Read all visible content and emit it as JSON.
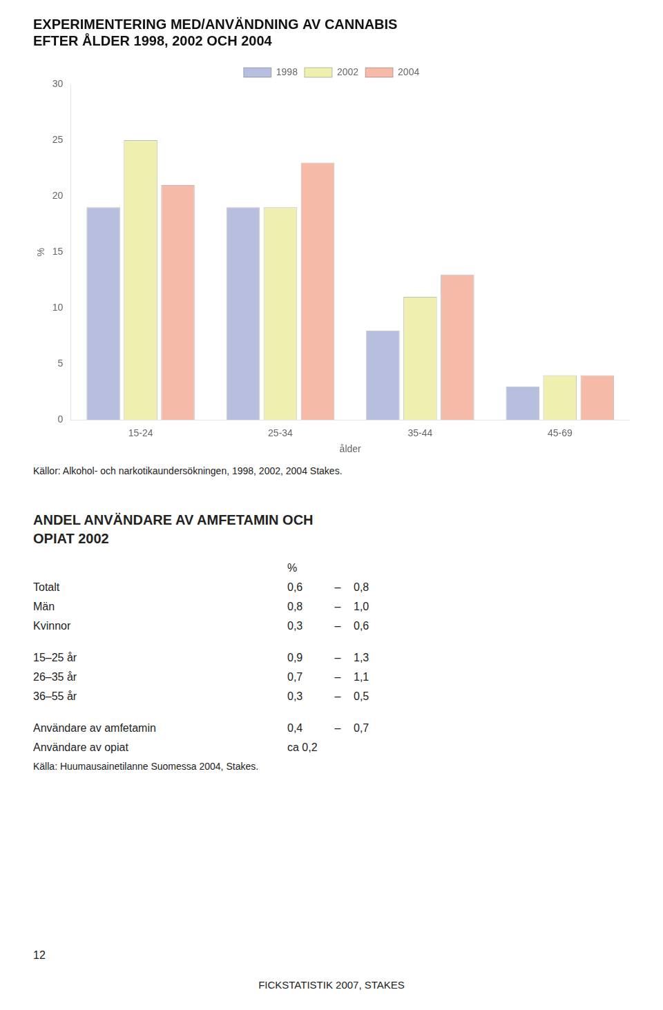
{
  "chart_data": {
    "type": "bar",
    "title": [
      "EXPERIMENTERING MED/ANVÄNDNING AV CANNABIS",
      "EFTER ÅLDER 1998, 2002 OCH 2004"
    ],
    "x_label": "ålder",
    "y_label": "%",
    "categories": [
      "15-24",
      "25-34",
      "35-44",
      "45-69"
    ],
    "series": [
      {
        "name": "1998",
        "color": "#b8bedd",
        "values": [
          19,
          19,
          8,
          3
        ]
      },
      {
        "name": "2002",
        "color": "#efefb0",
        "values": [
          25,
          19,
          11,
          4
        ]
      },
      {
        "name": "2004",
        "color": "#f5bba8",
        "values": [
          21,
          23,
          13,
          4
        ]
      }
    ],
    "ylim": [
      0,
      30
    ],
    "yticks": [
      0,
      5,
      10,
      15,
      20,
      25,
      30
    ],
    "grid": false,
    "legend": "top",
    "annotations": [
      "Källor: Alkohol- och narkotikaundersökningen, 1998, 2002, 2004 Stakes."
    ]
  },
  "table": {
    "title": [
      "ANDEL ANVÄNDARE AV AMFETAMIN OCH",
      "OPIAT 2002"
    ],
    "header": "%",
    "groups": [
      [
        {
          "label": "Totalt",
          "cells": [
            "0,6",
            "–",
            "0,8"
          ]
        },
        {
          "label": "Män",
          "cells": [
            "0,8",
            "–",
            "1,0"
          ]
        },
        {
          "label": "Kvinnor",
          "cells": [
            "0,3",
            "–",
            "0,6"
          ]
        }
      ],
      [
        {
          "label": "15–25 år",
          "cells": [
            "0,9",
            "–",
            "1,3"
          ]
        },
        {
          "label": "26–35 år",
          "cells": [
            "0,7",
            "–",
            "1,1"
          ]
        },
        {
          "label": "36–55 år",
          "cells": [
            "0,3",
            "–",
            "0,5"
          ]
        }
      ],
      [
        {
          "label": "Användare av amfetamin",
          "cells": [
            "0,4",
            "–",
            "0,7"
          ]
        },
        {
          "label": "Användare av opiat",
          "cells": [
            "ca 0,2"
          ]
        }
      ]
    ],
    "annotations": [
      "Källa: Huumausainetilanne Suomessa 2004, Stakes."
    ]
  },
  "annotations": [
    "12",
    "FICKSTATISTIK 2007, STAKES"
  ]
}
